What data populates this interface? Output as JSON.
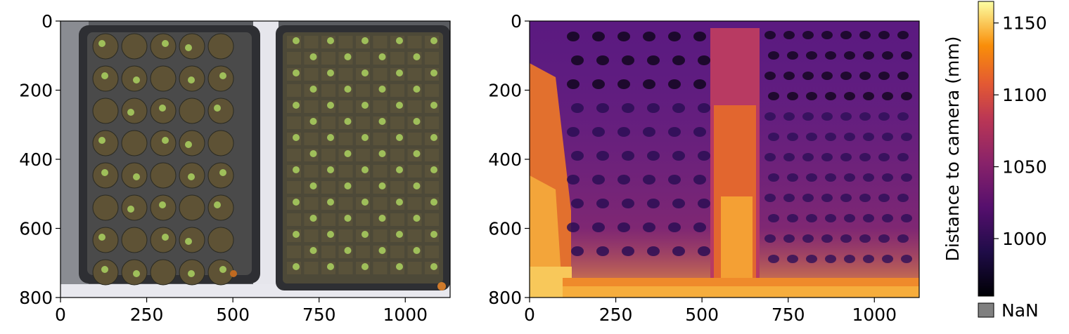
{
  "chart_data": [
    {
      "type": "image",
      "panel": "rgb-image",
      "xlim": [
        0,
        1130
      ],
      "ylim": [
        800,
        0
      ],
      "xticks": [
        0,
        250,
        500,
        750,
        1000
      ],
      "yticks": [
        0,
        200,
        400,
        600,
        800
      ],
      "xlabel": "",
      "ylabel": ""
    },
    {
      "type": "heatmap",
      "panel": "depth-map",
      "xlim": [
        0,
        1130
      ],
      "ylim": [
        800,
        0
      ],
      "xticks": [
        0,
        250,
        500,
        750,
        1000
      ],
      "yticks": [
        0,
        200,
        400,
        600,
        800
      ],
      "colormap": "inferno",
      "colorbar": {
        "label": "Distance to camera (mm)",
        "range": [
          960,
          1165
        ],
        "ticks": [
          1000,
          1050,
          1100,
          1150
        ],
        "nan_color": "#808080",
        "nan_label": "NaN"
      }
    }
  ],
  "colors": {
    "tray": "#3a3a3a",
    "soil": "#5e5235",
    "plant": "#9fbf5a",
    "background_light": "#e6e6ec"
  }
}
